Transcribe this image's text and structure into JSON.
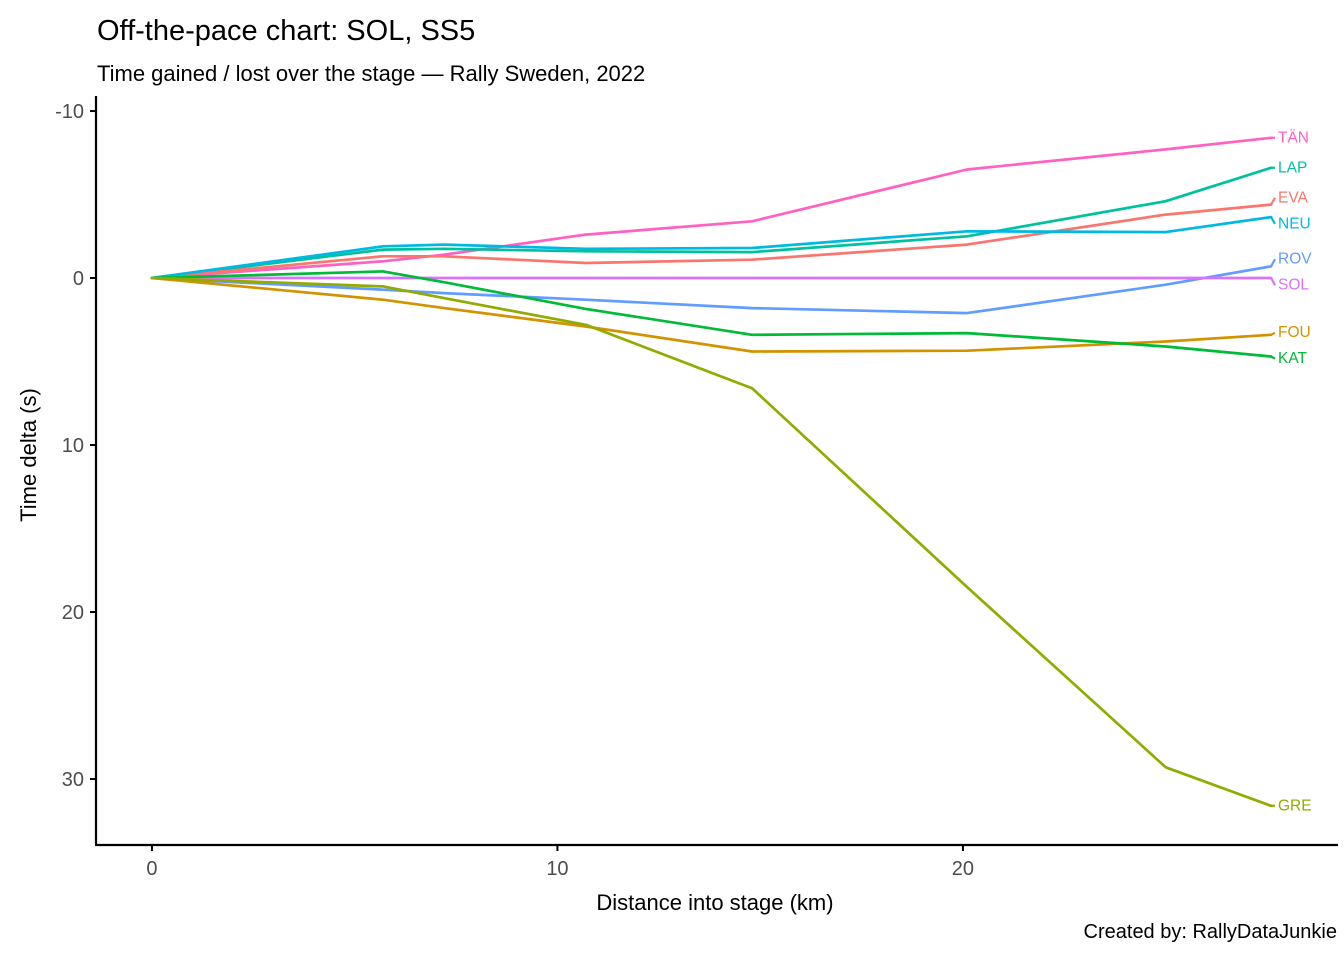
{
  "header": {
    "title": "Off-the-pace chart: SOL, SS5",
    "subtitle": "Time gained / lost over the stage — Rally Sweden, 2022"
  },
  "caption": "Created by: RallyDataJunkie",
  "chart_data": {
    "type": "line",
    "title": "Off-the-pace chart: SOL, SS5",
    "subtitle": "Time gained / lost over the stage — Rally Sweden, 2022",
    "xlabel": "Distance into stage (km)",
    "ylabel": "Time delta (s)",
    "x_ticks": [
      0,
      10,
      20
    ],
    "y_ticks": [
      -10,
      0,
      10,
      20,
      30
    ],
    "y_axis_inverted": true,
    "grid": false,
    "legend_position": "right-end-direct-labels",
    "xlim": [
      -1.38,
      29.25
    ],
    "ylim": [
      -10.9,
      33.95
    ],
    "x": [
      0,
      5.7,
      7.2,
      10.7,
      14.8,
      20.1,
      25.0,
      27.6
    ],
    "series": [
      {
        "name": "TÄN",
        "color": "#FF61C3",
        "values": [
          0,
          -1.0,
          -1.4,
          -2.6,
          -3.4,
          -6.5,
          -7.7,
          -8.4
        ]
      },
      {
        "name": "LAP",
        "color": "#00C19F",
        "values": [
          0,
          -1.7,
          -1.75,
          -1.6,
          -1.55,
          -2.5,
          -4.6,
          -6.6
        ]
      },
      {
        "name": "EVA",
        "color": "#F8766D",
        "values": [
          0,
          -1.3,
          -1.3,
          -0.9,
          -1.1,
          -2.0,
          -3.8,
          -4.4
        ]
      },
      {
        "name": "NEU",
        "color": "#00B9E3",
        "values": [
          0,
          -1.9,
          -2.0,
          -1.75,
          -1.8,
          -2.8,
          -2.75,
          -3.65
        ]
      },
      {
        "name": "ROV",
        "color": "#619CFF",
        "values": [
          0,
          0.7,
          0.9,
          1.3,
          1.8,
          2.1,
          0.4,
          -0.7
        ]
      },
      {
        "name": "SOL",
        "color": "#DB72FB",
        "values": [
          0,
          0,
          0,
          0,
          0,
          0,
          0,
          0
        ]
      },
      {
        "name": "FOU",
        "color": "#D39200",
        "values": [
          0,
          1.3,
          1.8,
          2.9,
          4.4,
          4.35,
          3.8,
          3.4
        ]
      },
      {
        "name": "KAT",
        "color": "#00BA38",
        "values": [
          0,
          -0.4,
          0.25,
          1.85,
          3.4,
          3.3,
          4.1,
          4.7
        ]
      },
      {
        "name": "GRE",
        "color": "#93AA00",
        "values": [
          0,
          0.5,
          1.2,
          2.8,
          6.6,
          18.5,
          29.3,
          31.6
        ]
      }
    ]
  }
}
